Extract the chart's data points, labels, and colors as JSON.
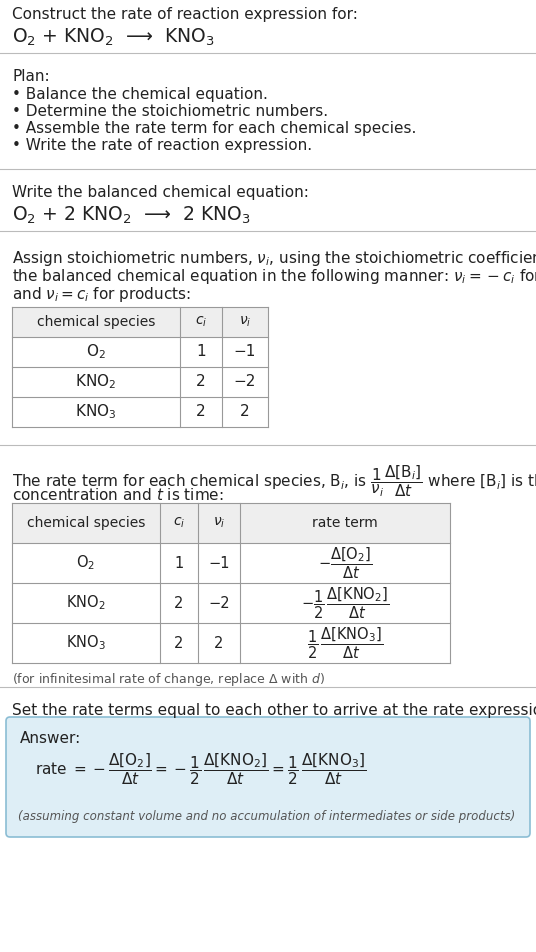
{
  "bg_color": "#ffffff",
  "title_text": "Construct the rate of reaction expression for:",
  "reaction_unbalanced": "O$_2$ + KNO$_2$  ⟶  KNO$_3$",
  "plan_header": "Plan:",
  "plan_bullets": [
    "• Balance the chemical equation.",
    "• Determine the stoichiometric numbers.",
    "• Assemble the rate term for each chemical species.",
    "• Write the rate of reaction expression."
  ],
  "balanced_header": "Write the balanced chemical equation:",
  "reaction_balanced": "O$_2$ + 2 KNO$_2$  ⟶  2 KNO$_3$",
  "stoich_intro_lines": [
    "Assign stoichiometric numbers, $\\nu_i$, using the stoichiometric coefficients, $c_i$, from",
    "the balanced chemical equation in the following manner: $\\nu_i = -c_i$ for reactants",
    "and $\\nu_i = c_i$ for products:"
  ],
  "table1_cols": [
    "chemical species",
    "$c_i$",
    "$\\nu_i$"
  ],
  "table1_data": [
    [
      "O$_2$",
      "1",
      "−1"
    ],
    [
      "KNO$_2$",
      "2",
      "−2"
    ],
    [
      "KNO$_3$",
      "2",
      "2"
    ]
  ],
  "table2_cols": [
    "chemical species",
    "$c_i$",
    "$\\nu_i$",
    "rate term"
  ],
  "table2_data": [
    [
      "O$_2$",
      "1",
      "−1",
      "$-\\dfrac{\\Delta[\\mathrm{O_2}]}{\\Delta t}$"
    ],
    [
      "KNO$_2$",
      "2",
      "−2",
      "$-\\dfrac{1}{2}\\,\\dfrac{\\Delta[\\mathrm{KNO_2}]}{\\Delta t}$"
    ],
    [
      "KNO$_3$",
      "2",
      "2",
      "$\\dfrac{1}{2}\\,\\dfrac{\\Delta[\\mathrm{KNO_3}]}{\\Delta t}$"
    ]
  ],
  "infinitesimal_note": "(for infinitesimal rate of change, replace Δ with $d$)",
  "set_equal_text": "Set the rate terms equal to each other to arrive at the rate expression:",
  "answer_box_color": "#deeef6",
  "answer_box_border": "#8bbdd4",
  "answer_label": "Answer:",
  "answer_footnote": "(assuming constant volume and no accumulation of intermediates or side products)",
  "text_color": "#222222",
  "table_header_bg": "#eeeeee",
  "table_line_color": "#999999",
  "separator_color": "#bbbbbb"
}
